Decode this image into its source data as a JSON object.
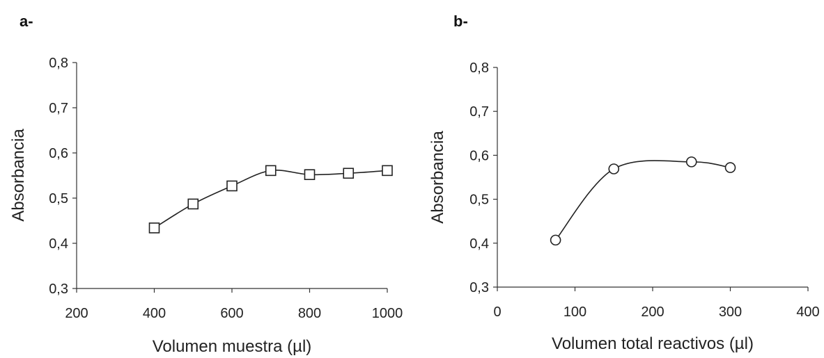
{
  "chart_data": [
    {
      "type": "line",
      "panel_label": "a-",
      "xlabel": "Volumen muestra (µl)",
      "ylabel": "Absorbancia",
      "xlim": [
        200,
        1000
      ],
      "ylim": [
        0.3,
        0.8
      ],
      "x_ticks": [
        "200",
        "400",
        "600",
        "800",
        "1000"
      ],
      "y_ticks": [
        "0,3",
        "0,4",
        "0,5",
        "0,6",
        "0,7",
        "0,8"
      ],
      "marker": "square",
      "grid": false,
      "series": [
        {
          "x": [
            400,
            500,
            600,
            700,
            800,
            900,
            1000
          ],
          "y": [
            0.434,
            0.487,
            0.527,
            0.561,
            0.552,
            0.555,
            0.561
          ]
        }
      ]
    },
    {
      "type": "line",
      "panel_label": "b-",
      "xlabel": "Volumen total reactivos (µl)",
      "ylabel": "Absorbancia",
      "xlim": [
        0,
        400
      ],
      "ylim": [
        0.3,
        0.8
      ],
      "x_ticks": [
        "0",
        "100",
        "200",
        "300",
        "400"
      ],
      "y_ticks": [
        "0,3",
        "0,4",
        "0,5",
        "0,6",
        "0,7",
        "0,8"
      ],
      "marker": "circle",
      "grid": false,
      "series": [
        {
          "x": [
            75,
            150,
            250,
            300
          ],
          "y": [
            0.407,
            0.569,
            0.585,
            0.572
          ]
        }
      ]
    }
  ]
}
